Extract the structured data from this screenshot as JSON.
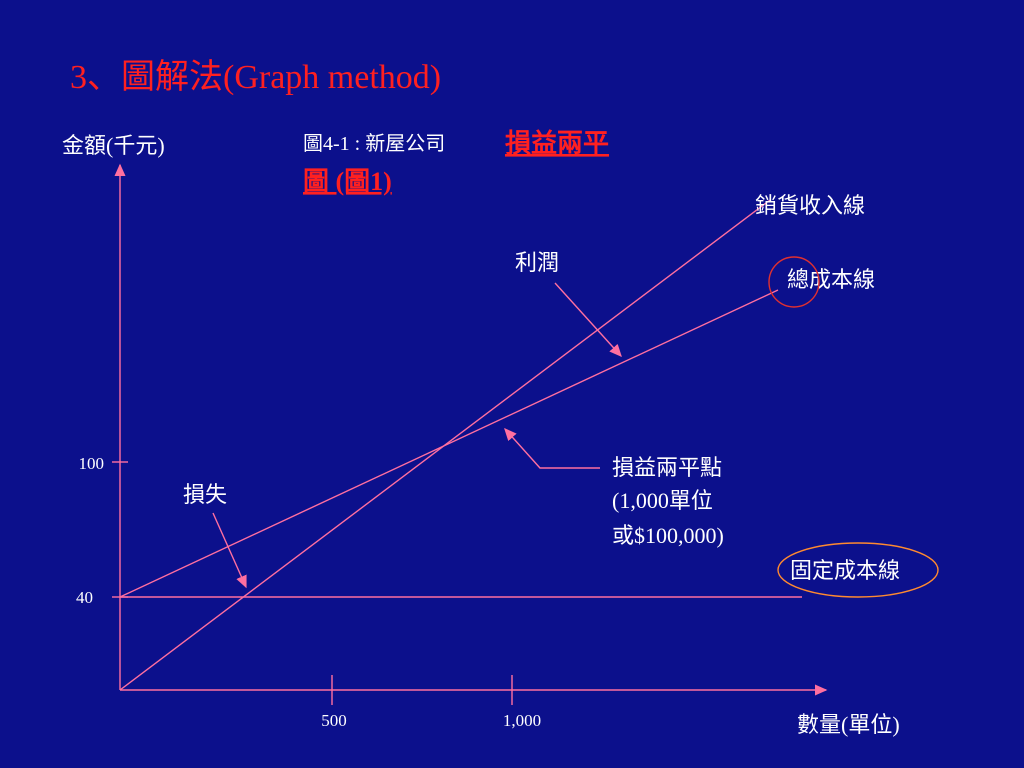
{
  "title": "3、圖解法(Graph method)",
  "figure_caption": {
    "prefix": "圖4-1 : 新屋公司",
    "highlight": "損益兩平",
    "line2": "圖 (圖1)"
  },
  "axes": {
    "y_label": "金額(千元)",
    "x_label": "數量(單位)",
    "y_ticks": [
      "100",
      "40"
    ],
    "x_ticks": [
      "500",
      "1,000"
    ]
  },
  "lines": {
    "revenue": "銷貨收入線",
    "total_cost": "總成本線",
    "fixed_cost": "固定成本線"
  },
  "annotations": {
    "profit": "利潤",
    "loss": "損失",
    "break_even": [
      "損益兩平點",
      "(1,000單位",
      "或$100,000)"
    ]
  }
}
